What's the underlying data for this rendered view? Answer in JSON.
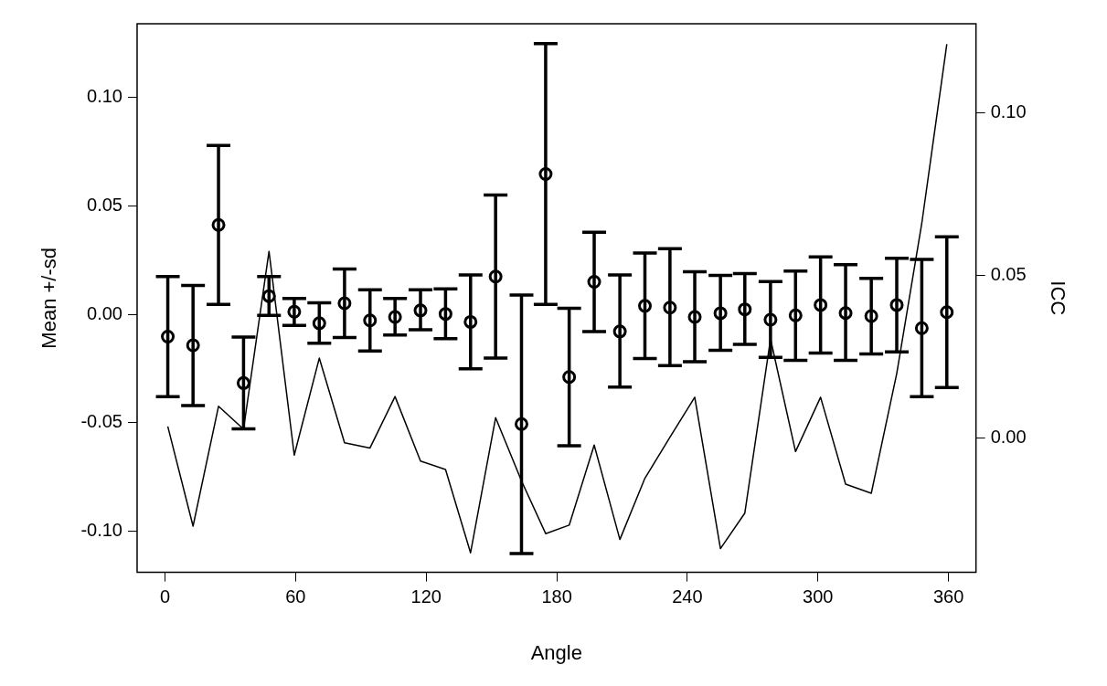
{
  "chart_data": {
    "type": "scatter",
    "xlabel": "Angle",
    "ylabel": "Mean +/-sd",
    "y2label": "ICC",
    "x": [
      1.3,
      12.9,
      24.6,
      36.1,
      47.8,
      59.4,
      70.9,
      82.5,
      94.2,
      105.7,
      117.4,
      128.9,
      140.4,
      151.9,
      163.8,
      174.9,
      185.7,
      197.2,
      209.0,
      220.5,
      232.0,
      243.4,
      255.2,
      266.4,
      278.2,
      289.7,
      301.2,
      312.7,
      324.5,
      336.2,
      347.7,
      359.2
    ],
    "xlim": [
      -12.8,
      372.6
    ],
    "xticks": [
      0,
      60,
      120,
      180,
      240,
      300,
      360
    ],
    "ylim": [
      -0.119,
      0.134
    ],
    "yticks": [
      {
        "value": -0.1,
        "label": "-0.10"
      },
      -0.05,
      {
        "value": 0,
        "label": "0.00"
      },
      0.05,
      {
        "value": 0.1,
        "label": "0.10"
      }
    ],
    "y2lim": [
      -0.0412,
      0.1273
    ],
    "y2ticks": [
      {
        "value": 0,
        "label": "0.00"
      },
      0.05,
      {
        "value": 0.1,
        "label": "0.10"
      }
    ],
    "series": [
      {
        "type": "scatter",
        "color": "#000000",
        "marker": "circle",
        "values": [
          -0.0103,
          -0.0143,
          0.0412,
          -0.0317,
          0.0084,
          0.0012,
          -0.0041,
          0.0051,
          -0.0028,
          -0.0012,
          0.0018,
          0.0002,
          -0.0035,
          0.0174,
          -0.0506,
          0.0647,
          -0.0289,
          0.015,
          -0.0079,
          0.0039,
          0.0031,
          -0.0012,
          0.0005,
          0.0023,
          -0.0025,
          -0.0005,
          0.0043,
          0.0006,
          -0.0008,
          0.0043,
          -0.0064,
          0.001
        ],
        "errors": [
          [
            -0.038,
            0.0174
          ],
          [
            -0.0421,
            0.0133
          ],
          [
            0.0046,
            0.0779
          ],
          [
            -0.0528,
            -0.0105
          ],
          [
            -0.0005,
            0.0174
          ],
          [
            -0.0051,
            0.0073
          ],
          [
            -0.0133,
            0.0053
          ],
          [
            -0.0107,
            0.0209
          ],
          [
            -0.0169,
            0.0113
          ],
          [
            -0.0095,
            0.0073
          ],
          [
            -0.0071,
            0.0113
          ],
          [
            -0.0112,
            0.0117
          ],
          [
            -0.0251,
            0.0182
          ],
          [
            -0.0202,
            0.055
          ],
          [
            -0.1103,
            0.0089
          ],
          [
            0.0046,
            0.1248
          ],
          [
            -0.0606,
            0.0028
          ],
          [
            -0.008,
            0.0379
          ],
          [
            -0.0335,
            0.0182
          ],
          [
            -0.0204,
            0.0283
          ],
          [
            -0.0237,
            0.0303
          ],
          [
            -0.0219,
            0.0196
          ],
          [
            -0.0166,
            0.0179
          ],
          [
            -0.0139,
            0.0188
          ],
          [
            -0.0199,
            0.0151
          ],
          [
            -0.0212,
            0.02
          ],
          [
            -0.0179,
            0.0265
          ],
          [
            -0.0212,
            0.0229
          ],
          [
            -0.0183,
            0.0166
          ],
          [
            -0.0173,
            0.0258
          ],
          [
            -0.038,
            0.0253
          ],
          [
            -0.0338,
            0.0357
          ]
        ]
      },
      {
        "type": "line",
        "axis": "y2",
        "color": "#000000",
        "marker": "none",
        "values": [
          0.0036,
          -0.027,
          0.0098,
          0.0028,
          0.0574,
          -0.0052,
          0.0246,
          -0.0014,
          -0.003,
          0.0128,
          -0.007,
          -0.0096,
          -0.0352,
          0.0063,
          -0.0131,
          -0.0293,
          -0.0267,
          -0.0021,
          -0.0311,
          -0.0123,
          0.0003,
          0.0126,
          -0.0339,
          -0.023,
          0.0305,
          -0.0041,
          0.0126,
          -0.0141,
          -0.0169,
          0.0199,
          0.066,
          0.121
        ]
      }
    ]
  }
}
